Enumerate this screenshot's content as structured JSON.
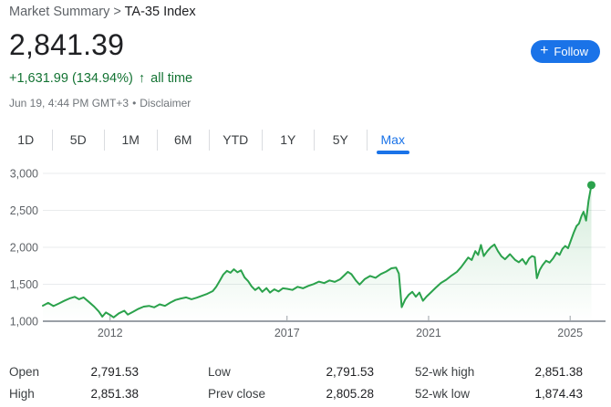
{
  "header": {
    "breadcrumb_section": "Market Summary",
    "breadcrumb_separator": " > ",
    "breadcrumb_current": "TA-35 Index",
    "price": "2,841.39",
    "change_text": "+1,631.99 (134.94%)",
    "change_arrow": "↑",
    "change_period": "all time",
    "timestamp": "Jun 19, 4:44 PM GMT+3",
    "dot_separator": "•",
    "disclaimer_label": "Disclaimer",
    "follow_button": {
      "icon": "+",
      "label": "Follow"
    }
  },
  "tabs": {
    "items": [
      {
        "label": "1D",
        "active": false
      },
      {
        "label": "5D",
        "active": false
      },
      {
        "label": "1M",
        "active": false
      },
      {
        "label": "6M",
        "active": false
      },
      {
        "label": "YTD",
        "active": false
      },
      {
        "label": "1Y",
        "active": false
      },
      {
        "label": "5Y",
        "active": false
      },
      {
        "label": "Max",
        "active": true
      }
    ]
  },
  "chart_data": {
    "type": "line",
    "title": "TA-35 Index price history (Max range)",
    "xlabel": "",
    "ylabel": "",
    "grid": true,
    "end_dot": true,
    "last_value": 2841.39,
    "x_domain": [
      2010.1,
      2026.0
    ],
    "y_domain": [
      1000,
      3000
    ],
    "x_ticks": [
      2012,
      2017,
      2021,
      2025
    ],
    "x_tick_labels": [
      "2012",
      "2017",
      "2021",
      "2025"
    ],
    "y_ticks": [
      1000,
      1500,
      2000,
      2500,
      3000
    ],
    "y_tick_labels": [
      "1,000",
      "1,500",
      "2,000",
      "2,500",
      "3,000"
    ],
    "series": [
      {
        "name": "TA-35 Index",
        "color": "#2BA24C",
        "points": [
          [
            2010.1,
            1210
          ],
          [
            2010.25,
            1248
          ],
          [
            2010.4,
            1205
          ],
          [
            2010.55,
            1240
          ],
          [
            2010.7,
            1275
          ],
          [
            2010.85,
            1308
          ],
          [
            2011.0,
            1330
          ],
          [
            2011.12,
            1298
          ],
          [
            2011.25,
            1322
          ],
          [
            2011.4,
            1262
          ],
          [
            2011.55,
            1198
          ],
          [
            2011.68,
            1132
          ],
          [
            2011.78,
            1062
          ],
          [
            2011.88,
            1118
          ],
          [
            2012.0,
            1085
          ],
          [
            2012.1,
            1052
          ],
          [
            2012.25,
            1108
          ],
          [
            2012.4,
            1142
          ],
          [
            2012.5,
            1090
          ],
          [
            2012.65,
            1128
          ],
          [
            2012.8,
            1168
          ],
          [
            2012.95,
            1198
          ],
          [
            2013.1,
            1208
          ],
          [
            2013.25,
            1188
          ],
          [
            2013.4,
            1228
          ],
          [
            2013.55,
            1208
          ],
          [
            2013.7,
            1252
          ],
          [
            2013.85,
            1288
          ],
          [
            2014.0,
            1308
          ],
          [
            2014.15,
            1322
          ],
          [
            2014.3,
            1298
          ],
          [
            2014.45,
            1318
          ],
          [
            2014.6,
            1345
          ],
          [
            2014.75,
            1372
          ],
          [
            2014.9,
            1408
          ],
          [
            2015.0,
            1465
          ],
          [
            2015.1,
            1548
          ],
          [
            2015.2,
            1632
          ],
          [
            2015.3,
            1682
          ],
          [
            2015.4,
            1655
          ],
          [
            2015.5,
            1702
          ],
          [
            2015.6,
            1662
          ],
          [
            2015.7,
            1688
          ],
          [
            2015.8,
            1592
          ],
          [
            2015.9,
            1542
          ],
          [
            2016.0,
            1472
          ],
          [
            2016.1,
            1422
          ],
          [
            2016.2,
            1458
          ],
          [
            2016.3,
            1398
          ],
          [
            2016.42,
            1448
          ],
          [
            2016.52,
            1388
          ],
          [
            2016.64,
            1432
          ],
          [
            2016.76,
            1402
          ],
          [
            2016.88,
            1446
          ],
          [
            2017.0,
            1438
          ],
          [
            2017.15,
            1424
          ],
          [
            2017.3,
            1466
          ],
          [
            2017.45,
            1446
          ],
          [
            2017.6,
            1478
          ],
          [
            2017.75,
            1502
          ],
          [
            2017.9,
            1536
          ],
          [
            2018.05,
            1516
          ],
          [
            2018.2,
            1552
          ],
          [
            2018.35,
            1532
          ],
          [
            2018.5,
            1568
          ],
          [
            2018.62,
            1622
          ],
          [
            2018.72,
            1668
          ],
          [
            2018.82,
            1636
          ],
          [
            2018.95,
            1548
          ],
          [
            2019.05,
            1496
          ],
          [
            2019.2,
            1572
          ],
          [
            2019.35,
            1612
          ],
          [
            2019.5,
            1588
          ],
          [
            2019.65,
            1638
          ],
          [
            2019.8,
            1672
          ],
          [
            2019.95,
            1716
          ],
          [
            2020.08,
            1726
          ],
          [
            2020.16,
            1645
          ],
          [
            2020.24,
            1190
          ],
          [
            2020.34,
            1295
          ],
          [
            2020.44,
            1358
          ],
          [
            2020.54,
            1398
          ],
          [
            2020.64,
            1332
          ],
          [
            2020.74,
            1388
          ],
          [
            2020.84,
            1276
          ],
          [
            2020.94,
            1332
          ],
          [
            2021.06,
            1388
          ],
          [
            2021.2,
            1452
          ],
          [
            2021.35,
            1518
          ],
          [
            2021.5,
            1562
          ],
          [
            2021.65,
            1618
          ],
          [
            2021.8,
            1668
          ],
          [
            2021.92,
            1732
          ],
          [
            2022.02,
            1798
          ],
          [
            2022.12,
            1862
          ],
          [
            2022.22,
            1828
          ],
          [
            2022.32,
            1948
          ],
          [
            2022.4,
            1898
          ],
          [
            2022.48,
            2032
          ],
          [
            2022.56,
            1882
          ],
          [
            2022.66,
            1948
          ],
          [
            2022.76,
            2002
          ],
          [
            2022.86,
            2038
          ],
          [
            2022.96,
            1948
          ],
          [
            2023.06,
            1878
          ],
          [
            2023.16,
            1838
          ],
          [
            2023.3,
            1908
          ],
          [
            2023.45,
            1828
          ],
          [
            2023.55,
            1798
          ],
          [
            2023.65,
            1842
          ],
          [
            2023.75,
            1772
          ],
          [
            2023.84,
            1848
          ],
          [
            2023.92,
            1882
          ],
          [
            2024.0,
            1868
          ],
          [
            2024.06,
            1582
          ],
          [
            2024.14,
            1692
          ],
          [
            2024.22,
            1758
          ],
          [
            2024.32,
            1818
          ],
          [
            2024.42,
            1792
          ],
          [
            2024.52,
            1852
          ],
          [
            2024.62,
            1928
          ],
          [
            2024.7,
            1898
          ],
          [
            2024.78,
            1978
          ],
          [
            2024.86,
            2018
          ],
          [
            2024.94,
            1988
          ],
          [
            2025.02,
            2092
          ],
          [
            2025.1,
            2198
          ],
          [
            2025.18,
            2288
          ],
          [
            2025.25,
            2322
          ],
          [
            2025.32,
            2422
          ],
          [
            2025.38,
            2482
          ],
          [
            2025.45,
            2362
          ],
          [
            2025.52,
            2632
          ],
          [
            2025.6,
            2841.39
          ]
        ]
      }
    ]
  },
  "stats": {
    "columns": [
      {
        "rows": [
          {
            "label": "Open",
            "value": "2,791.53"
          },
          {
            "label": "High",
            "value": "2,851.38"
          }
        ]
      },
      {
        "rows": [
          {
            "label": "Low",
            "value": "2,791.53"
          },
          {
            "label": "Prev close",
            "value": "2,805.28"
          }
        ]
      },
      {
        "rows": [
          {
            "label": "52-wk high",
            "value": "2,851.38"
          },
          {
            "label": "52-wk low",
            "value": "1,874.43"
          }
        ]
      }
    ]
  },
  "colors": {
    "accent_blue": "#1a73e8",
    "positive_green_text": "#137333",
    "line_green": "#2BA24C",
    "gridline": "#e9ebed",
    "axis": "#9aa0a6"
  }
}
